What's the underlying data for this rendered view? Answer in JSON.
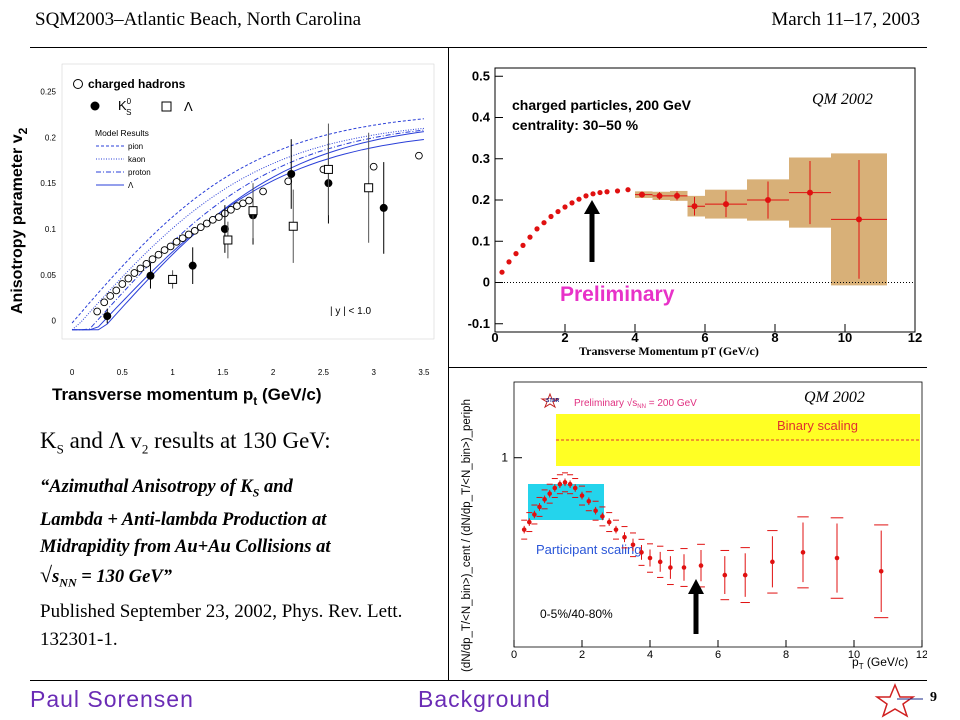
{
  "header": {
    "left": "SQM2003–Atlantic Beach, North Carolina",
    "right": "March 11–17, 2003"
  },
  "footer": {
    "author": "Paul Sorensen",
    "section": "Background",
    "page": "9"
  },
  "text_block": {
    "title_html_parts": {
      "k": "K",
      "k_sub": "S",
      "mid": " and Λ v",
      "v_sub": "2",
      "tail": " results at 130 GeV:"
    },
    "citation_line1": "“Azimuthal Anisotropy of K",
    "citation_line1_sub": "S",
    "citation_line1_tail": " and",
    "citation_line2": "Lambda + Anti-lambda Production at",
    "citation_line3": "Midrapidity from Au+Au Collisions at",
    "citation_sqrt": "√",
    "citation_sNN": "s",
    "citation_sNN_sub": "NN",
    "citation_tail": " = 130 GeV”",
    "published": "Published September 23, 2002, Phys. Rev. Lett. 132301-1."
  },
  "chart_data": [
    {
      "type": "scatter",
      "title": "",
      "xlabel": "Transverse momentum p",
      "xlabel_sub": "t",
      "xlabel_unit": " (GeV/c)",
      "ylabel": "Anisotropy parameter v",
      "ylabel_sub": "2",
      "xlim": [
        -0.1,
        3.6
      ],
      "ylim": [
        -0.02,
        0.28
      ],
      "xticks": [
        "0",
        "0.5",
        "1",
        "1.5",
        "2",
        "2.5",
        "3",
        "3.5"
      ],
      "yticks": [
        "0",
        "0.05",
        "0.1",
        "0.15",
        "0.2",
        "0.25"
      ],
      "legend": {
        "charged": "charged hadrons",
        "ks": "K",
        "ks_sup": "0",
        "ks_sub": "S",
        "lambda": "Λ",
        "model_title": "Model Results",
        "pion": "pion",
        "kaon": "kaon",
        "proton": "proton",
        "lam": "Λ"
      },
      "annotation": "| y | < 1.0",
      "series": [
        {
          "name": "charged hadrons",
          "x": [
            0.25,
            0.32,
            0.38,
            0.44,
            0.5,
            0.56,
            0.62,
            0.68,
            0.74,
            0.8,
            0.86,
            0.92,
            0.98,
            1.04,
            1.1,
            1.16,
            1.22,
            1.28,
            1.34,
            1.4,
            1.46,
            1.52,
            1.58,
            1.64,
            1.7,
            1.76,
            1.9,
            2.15,
            2.5,
            3.0,
            3.45
          ],
          "y": [
            0.01,
            0.02,
            0.027,
            0.033,
            0.04,
            0.046,
            0.052,
            0.057,
            0.062,
            0.067,
            0.072,
            0.077,
            0.081,
            0.086,
            0.09,
            0.094,
            0.098,
            0.102,
            0.106,
            0.11,
            0.113,
            0.117,
            0.121,
            0.125,
            0.128,
            0.131,
            0.141,
            0.152,
            0.165,
            0.168,
            0.18
          ]
        },
        {
          "name": "K0S",
          "x": [
            0.35,
            0.78,
            1.2,
            1.52,
            1.8,
            2.18,
            2.55,
            3.1
          ],
          "y": [
            0.005,
            0.049,
            0.06,
            0.1,
            0.115,
            0.16,
            0.15,
            0.123
          ]
        },
        {
          "name": "Λ",
          "x": [
            1.0,
            1.55,
            1.8,
            2.2,
            2.55,
            2.95
          ],
          "y": [
            0.045,
            0.088,
            0.12,
            0.103,
            0.165,
            0.145
          ]
        }
      ]
    },
    {
      "type": "scatter",
      "title": "",
      "corner_label": "QM 2002",
      "annotation_line1": "charged particles, 200 GeV",
      "annotation_line2": "centrality: 30–50 %",
      "preliminary": "Preliminary",
      "xlabel": "Transverse Momentum pT (GeV/c)",
      "ylabel": "",
      "xlim": [
        0,
        12
      ],
      "ylim": [
        -0.12,
        0.52
      ],
      "xticks": [
        "0",
        "2",
        "4",
        "6",
        "8",
        "10",
        "12"
      ],
      "yticks": [
        "-0.1",
        "0",
        "0.1",
        "0.2",
        "0.3",
        "0.4",
        "0.5"
      ],
      "series": [
        {
          "name": "v2",
          "x": [
            0.2,
            0.4,
            0.6,
            0.8,
            1.0,
            1.2,
            1.4,
            1.6,
            1.8,
            2.0,
            2.2,
            2.4,
            2.6,
            2.8,
            3.0,
            3.2,
            3.5,
            3.8
          ],
          "y": [
            0.025,
            0.05,
            0.07,
            0.09,
            0.11,
            0.13,
            0.145,
            0.16,
            0.172,
            0.183,
            0.193,
            0.202,
            0.21,
            0.215,
            0.218,
            0.22,
            0.222,
            0.225
          ]
        },
        {
          "name": "v2 high pT",
          "x": [
            4.2,
            4.7,
            5.2,
            5.7,
            6.6,
            7.8,
            9.0,
            10.4
          ],
          "y": [
            0.213,
            0.21,
            0.21,
            0.185,
            0.19,
            0.2,
            0.218,
            0.153
          ],
          "syst": [
            0.008,
            0.01,
            0.012,
            0.025,
            0.035,
            0.05,
            0.085,
            0.16
          ]
        }
      ]
    },
    {
      "type": "scatter",
      "corner_label": "QM 2002",
      "star_label": "STAR",
      "preliminary": "Preliminary √s",
      "preliminary_sub": "NN",
      "preliminary_tail": " = 200 GeV",
      "binary": "Binary scaling",
      "participant": "Participant scaling",
      "centrality": "0-5%/40-80%",
      "xlabel": "p",
      "xlabel_sub": "T",
      "xlabel_unit": " (GeV/c)",
      "ylabel": "(dN/dp_T/<N_bin>)_cent / (dN/dp_T/<N_bin>)_periph",
      "xlim": [
        0,
        12
      ],
      "ylim": [
        0,
        1.4
      ],
      "xticks": [
        "0",
        "2",
        "4",
        "6",
        "8",
        "10",
        "12"
      ],
      "yticks": [
        "1"
      ],
      "series": [
        {
          "name": "R_CP",
          "x": [
            0.3,
            0.45,
            0.6,
            0.75,
            0.9,
            1.05,
            1.2,
            1.35,
            1.5,
            1.65,
            1.8,
            2.0,
            2.2,
            2.4,
            2.6,
            2.8,
            3.0,
            3.25,
            3.5,
            3.75,
            4.0,
            4.3,
            4.6,
            5.0,
            5.5,
            6.2,
            6.8,
            7.6,
            8.5,
            9.5,
            10.8
          ],
          "y": [
            0.62,
            0.66,
            0.7,
            0.74,
            0.78,
            0.81,
            0.84,
            0.86,
            0.87,
            0.86,
            0.84,
            0.8,
            0.77,
            0.72,
            0.69,
            0.66,
            0.62,
            0.58,
            0.54,
            0.5,
            0.47,
            0.45,
            0.42,
            0.42,
            0.43,
            0.38,
            0.38,
            0.45,
            0.5,
            0.47,
            0.4
          ]
        }
      ]
    }
  ]
}
